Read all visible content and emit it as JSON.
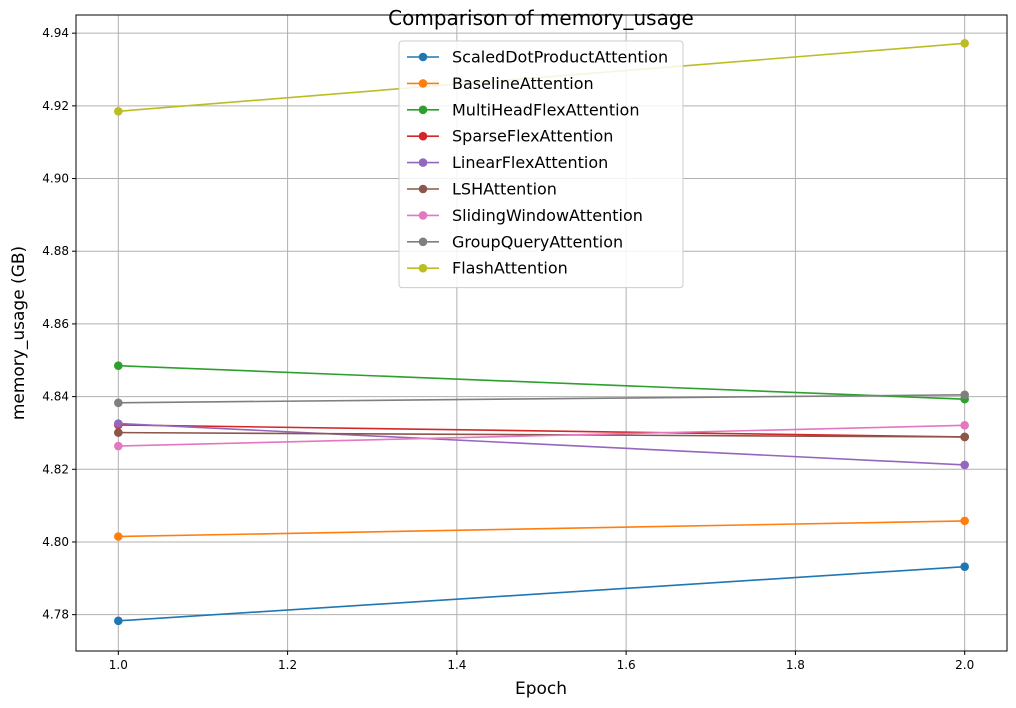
{
  "chart_data": {
    "type": "line",
    "title": "Comparison of memory_usage",
    "xlabel": "Epoch",
    "ylabel": "memory_usage (GB)",
    "x": [
      1.0,
      2.0
    ],
    "xlim": [
      0.95,
      2.05
    ],
    "ylim": [
      4.77,
      4.945
    ],
    "xticks": [
      1.0,
      1.2,
      1.4,
      1.6,
      1.8,
      2.0
    ],
    "xtick_labels": [
      "1.0",
      "1.2",
      "1.4",
      "1.6",
      "1.8",
      "2.0"
    ],
    "yticks": [
      4.78,
      4.8,
      4.82,
      4.84,
      4.86,
      4.88,
      4.9,
      4.92,
      4.94
    ],
    "ytick_labels": [
      "4.78",
      "4.80",
      "4.82",
      "4.84",
      "4.86",
      "4.88",
      "4.90",
      "4.92",
      "4.94"
    ],
    "grid": true,
    "legend_position": "top-center",
    "series": [
      {
        "name": "ScaledDotProductAttention",
        "color": "#1f77b4",
        "values": [
          4.7783,
          4.7932
        ]
      },
      {
        "name": "BaselineAttention",
        "color": "#ff7f0e",
        "values": [
          4.8015,
          4.8058
        ]
      },
      {
        "name": "MultiHeadFlexAttention",
        "color": "#2ca02c",
        "values": [
          4.8485,
          4.8393
        ]
      },
      {
        "name": "SparseFlexAttention",
        "color": "#d62728",
        "values": [
          4.8322,
          4.8289
        ]
      },
      {
        "name": "LinearFlexAttention",
        "color": "#9467bd",
        "values": [
          4.8326,
          4.8212
        ]
      },
      {
        "name": "LSHAttention",
        "color": "#8c564b",
        "values": [
          4.8301,
          4.8289
        ]
      },
      {
        "name": "SlidingWindowAttention",
        "color": "#e377c2",
        "values": [
          4.8264,
          4.8321
        ]
      },
      {
        "name": "GroupQueryAttention",
        "color": "#7f7f7f",
        "values": [
          4.8383,
          4.8405
        ]
      },
      {
        "name": "FlashAttention",
        "color": "#bcbd22",
        "values": [
          4.9185,
          4.9372
        ]
      }
    ]
  }
}
